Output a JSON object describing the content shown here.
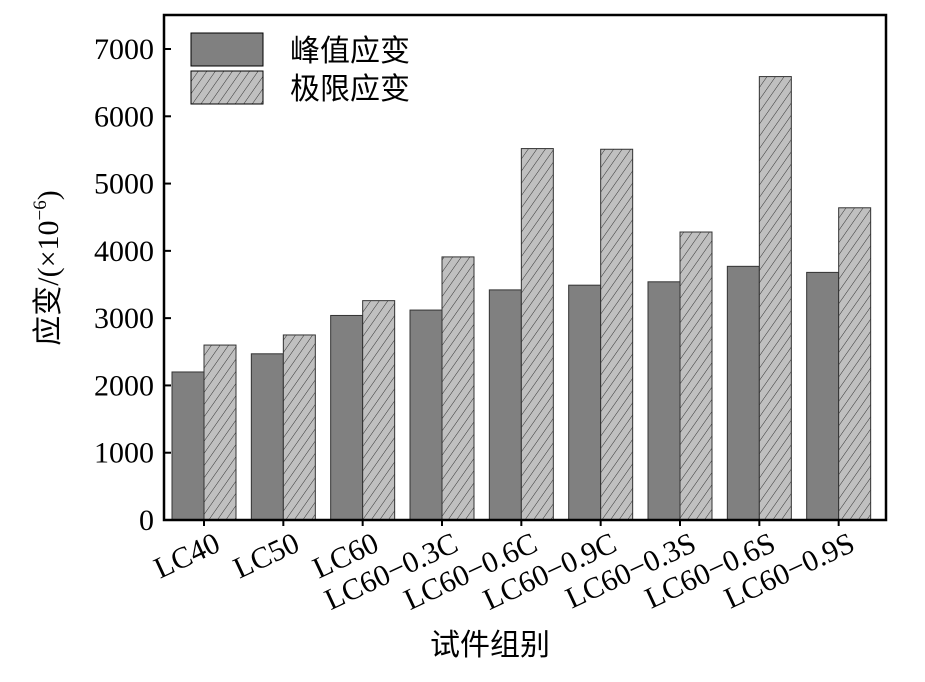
{
  "chart_data": {
    "type": "bar",
    "title": "",
    "xlabel": "试件组别",
    "ylabel": "应变/(×10",
    "ylabel_exp": "−6",
    "ylabel_close": ")",
    "ylim": [
      0,
      7500
    ],
    "yticks": [
      0,
      1000,
      2000,
      3000,
      4000,
      5000,
      6000,
      7000
    ],
    "categories": [
      "LC40",
      "LC50",
      "LC60",
      "LC60−0.3C",
      "LC60−0.6C",
      "LC60−0.9C",
      "LC60−0.3S",
      "LC60−0.6S",
      "LC60−0.9S"
    ],
    "series": [
      {
        "name": "峰值应变",
        "color": "#808080",
        "pattern": "solid",
        "values": [
          2200,
          2470,
          3040,
          3120,
          3420,
          3490,
          3540,
          3770,
          3680
        ]
      },
      {
        "name": "极限应变",
        "color": "#c0c0c0",
        "pattern": "hatch",
        "values": [
          2600,
          2750,
          3260,
          3910,
          5520,
          5510,
          4280,
          6590,
          4640
        ]
      }
    ],
    "legend": "top-left",
    "grid": false
  }
}
